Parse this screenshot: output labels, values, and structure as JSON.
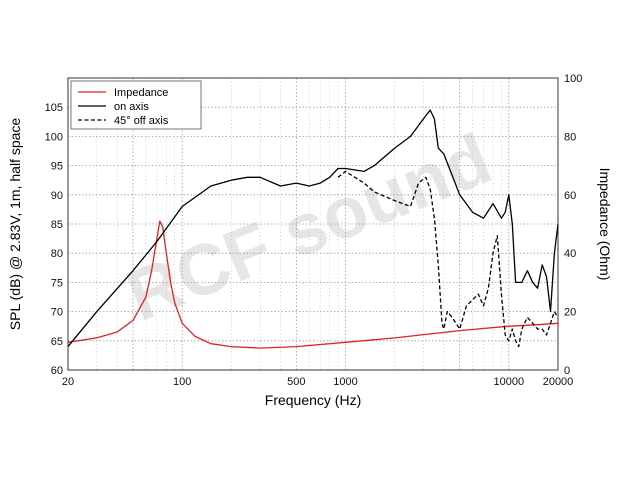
{
  "watermark": "RCF sound",
  "chart_data": {
    "type": "line",
    "xscale": "log",
    "xlim": [
      20,
      20000
    ],
    "ylim": [
      60,
      110
    ],
    "y2lim": [
      0,
      100
    ],
    "grid": true,
    "legend_position": "top-left",
    "xlabel": "Frequency (Hz)",
    "ylabel": "SPL (dB) @ 2.83V, 1m, half space",
    "y2label": "Impedance (Ohm)",
    "x_tick_labels": [
      "20",
      "100",
      "500",
      "1000",
      "10000",
      "20000"
    ],
    "y_tick_labels": [
      "60",
      "65",
      "70",
      "75",
      "80",
      "85",
      "90",
      "95",
      "100",
      "105"
    ],
    "y2_tick_labels": [
      "0",
      "20",
      "40",
      "60",
      "80",
      "100"
    ],
    "series": [
      {
        "name": "Impedance",
        "axis": "right",
        "color": "#dd2222",
        "style": "solid",
        "x": [
          20,
          30,
          40,
          50,
          60,
          65,
          70,
          73,
          76,
          80,
          85,
          90,
          100,
          120,
          150,
          200,
          300,
          500,
          1000,
          2000,
          5000,
          10000,
          15000,
          20000
        ],
        "y": [
          9.5,
          11,
          13,
          17,
          25,
          34,
          45,
          51,
          49,
          40,
          30,
          23,
          16,
          11.5,
          9,
          8,
          7.5,
          8,
          9.5,
          11,
          13.5,
          15,
          15.5,
          16
        ]
      },
      {
        "name": "on axis",
        "axis": "left",
        "color": "#000000",
        "style": "solid",
        "x": [
          20,
          30,
          50,
          70,
          100,
          150,
          200,
          250,
          300,
          400,
          500,
          600,
          700,
          800,
          900,
          1000,
          1300,
          1500,
          2000,
          2500,
          3000,
          3300,
          3500,
          3700,
          4000,
          5000,
          6000,
          7000,
          8000,
          9000,
          9500,
          10000,
          10500,
          11000,
          12000,
          13000,
          14000,
          15000,
          16000,
          17000,
          18000,
          19000,
          20000
        ],
        "y": [
          64,
          70,
          77,
          82,
          88,
          91.5,
          92.5,
          93,
          93,
          91.5,
          92,
          91.5,
          92,
          93,
          94.5,
          94.5,
          94,
          95,
          98,
          100,
          103,
          104.5,
          103,
          98,
          97,
          90,
          87,
          86,
          88.5,
          86,
          87,
          90,
          85,
          75,
          75,
          77,
          75,
          74,
          78,
          76,
          70,
          80,
          85
        ]
      },
      {
        "name": "45° off axis",
        "axis": "left",
        "color": "#000000",
        "style": "dashed",
        "x": [
          900,
          1000,
          1300,
          1500,
          2000,
          2500,
          2800,
          3100,
          3300,
          3500,
          3700,
          3900,
          4000,
          4200,
          4500,
          5000,
          5500,
          6000,
          6500,
          7000,
          7500,
          8000,
          8500,
          9000,
          9500,
          10000,
          10500,
          11000,
          11500,
          12000,
          13000,
          14000,
          15000,
          16000,
          17000,
          18000,
          19000,
          20000
        ],
        "y": [
          93,
          94,
          92,
          90.5,
          89,
          88,
          92,
          93,
          91,
          86,
          78,
          68,
          67,
          70,
          69,
          67,
          71,
          72,
          73,
          71,
          74,
          80,
          83,
          73,
          66,
          65,
          67,
          65,
          64,
          67,
          69,
          68,
          67,
          67,
          66,
          68,
          70,
          69
        ]
      }
    ]
  }
}
